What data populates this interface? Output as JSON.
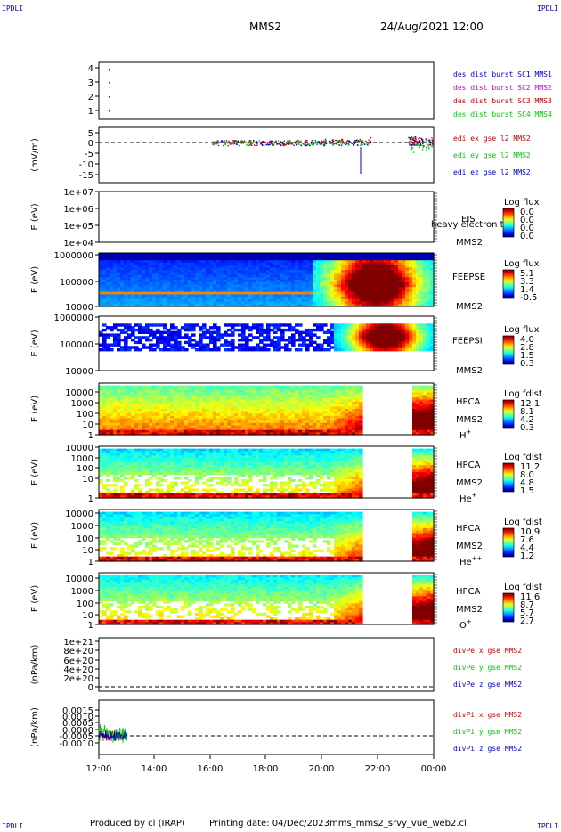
{
  "header": {
    "corner_tl": "IPDLI",
    "corner_tr": "IPDLI",
    "corner_bl": "IPDLI",
    "corner_br": "IPDLI",
    "spacecraft": "MMS2",
    "datetime": "24/Aug/2021 12:00"
  },
  "footer": {
    "produced_by": "Produced by cl (IRAP)",
    "printing_date": "Printing date: 04/Dec/2023",
    "script": "mms_mms2_srvy_vue_web2.cl"
  },
  "colors": {
    "blue": "#0000cc",
    "magenta": "#cc00cc",
    "red": "#cc0000",
    "green": "#00cc00"
  },
  "chart_data": {
    "type": "heatmap",
    "x_ticks": [
      "12:00",
      "14:00",
      "16:00",
      "18:00",
      "20:00",
      "22:00",
      "00:00"
    ],
    "x_range_hours": [
      12,
      24
    ],
    "panels": [
      {
        "id": "des-dist",
        "ylabel": "",
        "yticks": [
          "4",
          "3",
          "2",
          "1"
        ],
        "legend": [
          {
            "text": "des dist burst SC1 MMS1",
            "color": "#0000cc"
          },
          {
            "text": "des dist burst SC2 MMS2",
            "color": "#cc00cc"
          },
          {
            "text": "des dist burst SC3 MMS3",
            "color": "#cc0000"
          },
          {
            "text": "des dist burst SC4 MMS4",
            "color": "#00cc00"
          }
        ]
      },
      {
        "id": "edi-e",
        "ylabel": "(mV/m)",
        "yticks": [
          "5",
          "0",
          "-5",
          "-10",
          "-15"
        ],
        "legend": [
          {
            "text": "edi ex gse l2 MMS2",
            "color": "#cc0000"
          },
          {
            "text": "edi ey gse l2 MMS2",
            "color": "#00cc00"
          },
          {
            "text": "edi ez gse l2 MMS2",
            "color": "#0000cc"
          }
        ]
      },
      {
        "id": "eis",
        "ylabel": "E (eV)",
        "yticks": [
          "1e+07",
          "1e+06",
          "1e+05",
          "1e+04"
        ],
        "instrument": [
          "EIS",
          "MMS2"
        ],
        "overlay_text": "heavy electron tof",
        "colorbar_title": "Log flux",
        "colorbar_values": [
          "0.0",
          "0.0",
          "0.0",
          "0.0"
        ]
      },
      {
        "id": "feepse",
        "ylabel": "E (eV)",
        "yticks": [
          "1000000",
          "100000",
          "10000"
        ],
        "instrument": [
          "FEEPSE",
          "MMS2"
        ],
        "colorbar_title": "Log flux",
        "colorbar_values": [
          "5.1",
          "3.3",
          "1.4",
          "-0.5"
        ]
      },
      {
        "id": "feepsi",
        "ylabel": "E (eV)",
        "yticks": [
          "1000000",
          "100000",
          "10000"
        ],
        "instrument": [
          "FEEPSI",
          "MMS2"
        ],
        "colorbar_title": "Log flux",
        "colorbar_values": [
          "4.0",
          "2.8",
          "1.5",
          "0.3"
        ]
      },
      {
        "id": "hpca-h",
        "ylabel": "E (eV)",
        "yticks": [
          "10000",
          "1000",
          "100",
          "10",
          "1"
        ],
        "instrument": [
          "HPCA",
          "MMS2",
          "H+"
        ],
        "colorbar_title": "Log fdist",
        "colorbar_values": [
          "12.1",
          "8.1",
          "4.2",
          "0.3"
        ]
      },
      {
        "id": "hpca-he",
        "ylabel": "E (eV)",
        "yticks": [
          "10000",
          "1000",
          "100",
          "10",
          "1"
        ],
        "instrument": [
          "HPCA",
          "MMS2",
          "He+"
        ],
        "colorbar_title": "Log fdist",
        "colorbar_values": [
          "11.2",
          "8.0",
          "4.8",
          "1.5"
        ]
      },
      {
        "id": "hpca-hepp",
        "ylabel": "E (eV)",
        "yticks": [
          "10000",
          "1000",
          "100",
          "10",
          "1"
        ],
        "instrument": [
          "HPCA",
          "MMS2",
          "He++"
        ],
        "colorbar_title": "Log fdist",
        "colorbar_values": [
          "10.9",
          "7.6",
          "4.4",
          "1.2"
        ]
      },
      {
        "id": "hpca-o",
        "ylabel": "E (eV)",
        "yticks": [
          "10000",
          "1000",
          "100",
          "10",
          "1"
        ],
        "instrument": [
          "HPCA",
          "MMS2",
          "O+"
        ],
        "colorbar_title": "Log fdist",
        "colorbar_values": [
          "11.6",
          "8.7",
          "5.7",
          "2.7"
        ]
      },
      {
        "id": "divpe",
        "ylabel": "(nPa/km)",
        "yticks": [
          "1e+21",
          "8e+20",
          "6e+20",
          "4e+20",
          "2e+20",
          "0"
        ],
        "legend": [
          {
            "text": "divPe x gse MMS2",
            "color": "#cc0000"
          },
          {
            "text": "divPe y gse MMS2",
            "color": "#00cc00"
          },
          {
            "text": "divPe z gse MMS2",
            "color": "#0000cc"
          }
        ]
      },
      {
        "id": "divpi",
        "ylabel": "(nPa/km)",
        "yticks": [
          "0.0015",
          "0.0010",
          "0.0005",
          "0.0000",
          "-0.0005",
          "-0.0010"
        ],
        "legend": [
          {
            "text": "divPi x gse MMS2",
            "color": "#cc0000"
          },
          {
            "text": "divPi y gse MMS2",
            "color": "#00cc00"
          },
          {
            "text": "divPi z gse MMS2",
            "color": "#0000cc"
          }
        ]
      }
    ]
  }
}
